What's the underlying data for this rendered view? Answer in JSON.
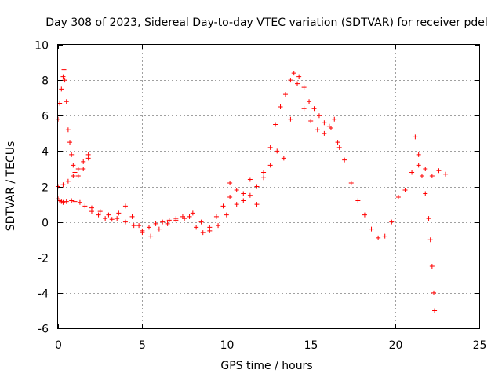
{
  "chart_data": {
    "type": "scatter",
    "title": "Day 308 of 2023, Sidereal Day-to-day VTEC variation (SDTVAR) for receiver pdel",
    "xlabel": "GPS time / hours",
    "ylabel": "SDTVAR / TECUs",
    "xlim": [
      0,
      25
    ],
    "ylim": [
      -6,
      10
    ],
    "xticks": [
      0,
      5,
      10,
      15,
      20,
      25
    ],
    "yticks": [
      -6,
      -4,
      -2,
      0,
      2,
      4,
      6,
      8,
      10
    ],
    "xtick_labels": [
      "0",
      "5",
      "10",
      "15",
      "20",
      "25"
    ],
    "ytick_labels": [
      "-6",
      "-4",
      "-2",
      "0",
      "2",
      "4",
      "6",
      "8",
      "10"
    ],
    "grid": true,
    "marker": "+",
    "color": "#ff0000",
    "series": [
      {
        "name": "main",
        "x": [
          0.0,
          0.1,
          0.2,
          0.3,
          0.5,
          0.8,
          1.0,
          1.3,
          1.6,
          2.0,
          2.4,
          2.8,
          3.2,
          3.6,
          4.0,
          4.4,
          4.8,
          5.0,
          5.4,
          5.8,
          6.2,
          6.6,
          7.0,
          7.4,
          7.8,
          8.2,
          8.6,
          9.0,
          9.4,
          9.8,
          10.2,
          10.6,
          11.0,
          11.4,
          11.8,
          12.2,
          12.6,
          13.0,
          13.4,
          13.8,
          14.2,
          14.6,
          15.0,
          15.4,
          15.8,
          16.2,
          16.6,
          17.0,
          17.4,
          17.8,
          18.2,
          18.6,
          19.0,
          19.4,
          19.8,
          20.2,
          20.6,
          21.0,
          21.4,
          21.8,
          22.2,
          22.6,
          23.0
        ],
        "y": [
          1.3,
          1.2,
          1.15,
          1.1,
          1.15,
          1.2,
          1.15,
          1.1,
          0.9,
          0.6,
          0.4,
          0.2,
          0.15,
          0.5,
          0.9,
          0.3,
          -0.2,
          -0.5,
          -0.3,
          -0.1,
          0.0,
          0.1,
          0.2,
          0.3,
          0.3,
          -0.3,
          -0.6,
          -0.3,
          0.3,
          0.9,
          1.4,
          1.8,
          1.2,
          1.5,
          2.0,
          2.5,
          3.2,
          4.0,
          3.6,
          5.8,
          7.8,
          6.4,
          5.7,
          5.2,
          5.0,
          5.3,
          4.5,
          3.5,
          2.2,
          1.2,
          0.4,
          -0.4,
          -0.9,
          -0.8,
          0.0,
          1.4,
          1.8,
          2.8,
          3.2,
          3.0,
          2.6,
          2.9,
          2.7
        ]
      },
      {
        "name": "upper-branch",
        "x": [
          0.0,
          0.1,
          0.2,
          0.3,
          0.35,
          0.4,
          0.5,
          0.6,
          0.7,
          0.8,
          0.9,
          1.0,
          1.2,
          1.5,
          1.8
        ],
        "y": [
          5.8,
          6.7,
          7.5,
          8.2,
          8.6,
          8.0,
          6.8,
          5.2,
          4.5,
          3.8,
          3.2,
          2.8,
          2.6,
          3.0,
          3.6
        ]
      },
      {
        "name": "rising-branch",
        "x": [
          0.0,
          0.3,
          0.6,
          0.9,
          1.2,
          1.5,
          1.8
        ],
        "y": [
          2.0,
          2.1,
          2.3,
          2.6,
          3.0,
          3.4,
          3.8
        ]
      },
      {
        "name": "lower-band",
        "x": [
          2.0,
          2.5,
          3.0,
          3.5,
          4.0,
          4.5,
          5.0,
          5.5,
          6.0,
          6.5,
          7.0,
          7.5,
          8.0,
          8.5,
          9.0,
          9.5,
          10.0
        ],
        "y": [
          0.8,
          0.6,
          0.4,
          0.2,
          0.0,
          -0.2,
          -0.6,
          -0.8,
          -0.4,
          -0.1,
          0.1,
          0.2,
          0.5,
          0.0,
          -0.5,
          -0.2,
          0.4
        ]
      },
      {
        "name": "midday-scatter",
        "x": [
          10.2,
          10.6,
          11.0,
          11.4,
          11.8,
          12.2,
          12.6,
          12.9,
          13.2,
          13.5,
          13.8,
          14.0,
          14.3,
          14.6,
          14.9,
          15.2,
          15.5,
          15.8,
          16.1,
          16.4,
          16.7
        ],
        "y": [
          2.2,
          1.0,
          1.6,
          2.4,
          1.0,
          2.8,
          4.2,
          5.5,
          6.5,
          7.2,
          8.0,
          8.4,
          8.2,
          7.6,
          6.8,
          6.4,
          6.0,
          5.6,
          5.4,
          5.8,
          4.2
        ]
      },
      {
        "name": "late-branch",
        "x": [
          21.2,
          21.4,
          21.6,
          21.8,
          22.0,
          22.1,
          22.2,
          22.3,
          22.35
        ],
        "y": [
          4.8,
          3.8,
          2.6,
          1.6,
          0.2,
          -1.0,
          -2.5,
          -4.0,
          -5.0
        ]
      }
    ]
  }
}
